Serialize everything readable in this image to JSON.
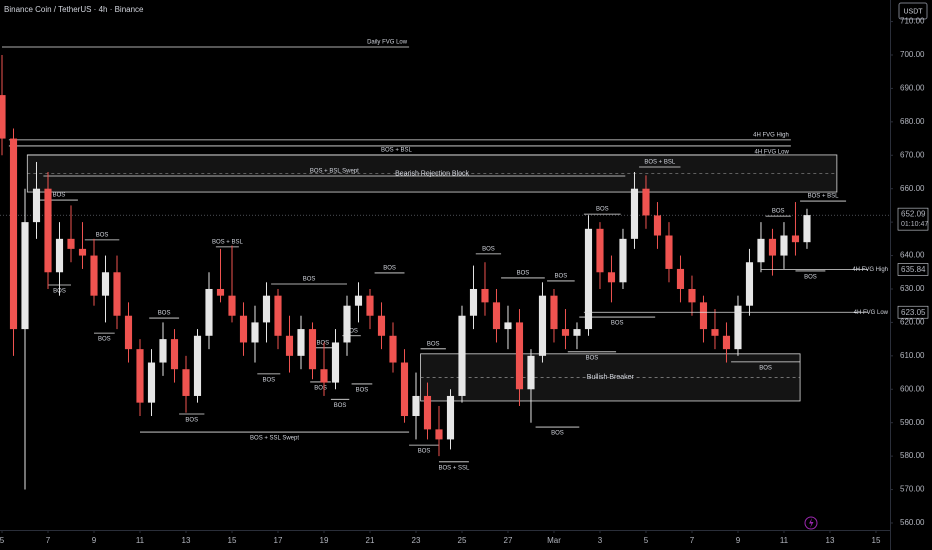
{
  "chart_data": {
    "type": "candlestick",
    "title": "Binance Coin / TetherUS · 4h · Binance",
    "currency": "USDT",
    "up_color": "#e6e6e6",
    "down_color": "#ef5350",
    "xlim": [
      -0.087,
      38.61
    ],
    "ylim": [
      557.9,
      716.45
    ],
    "xticks": [
      {
        "value": 0,
        "label": "5"
      },
      {
        "value": 2,
        "label": "7"
      },
      {
        "value": 4,
        "label": "9"
      },
      {
        "value": 6,
        "label": "11"
      },
      {
        "value": 8,
        "label": "13"
      },
      {
        "value": 10,
        "label": "15"
      },
      {
        "value": 12,
        "label": "17"
      },
      {
        "value": 14,
        "label": "19"
      },
      {
        "value": 16,
        "label": "21"
      },
      {
        "value": 18,
        "label": "23"
      },
      {
        "value": 20,
        "label": "25"
      },
      {
        "value": 22,
        "label": "27"
      },
      {
        "value": 24,
        "label": "Mar"
      },
      {
        "value": 26,
        "label": "3"
      },
      {
        "value": 28,
        "label": "5"
      },
      {
        "value": 30,
        "label": "7"
      },
      {
        "value": 32,
        "label": "9"
      },
      {
        "value": 34,
        "label": "11"
      },
      {
        "value": 36,
        "label": "13"
      },
      {
        "value": 38,
        "label": "15"
      }
    ],
    "yticks": [
      {
        "value": 560,
        "label": "560.00"
      },
      {
        "value": 570,
        "label": "570.00"
      },
      {
        "value": 580,
        "label": "580.00"
      },
      {
        "value": 590,
        "label": "590.00"
      },
      {
        "value": 600,
        "label": "600.00"
      },
      {
        "value": 610,
        "label": "610.00"
      },
      {
        "value": 620,
        "label": "620.00"
      },
      {
        "value": 630,
        "label": "630.00"
      },
      {
        "value": 640,
        "label": "640.00"
      },
      {
        "value": 650,
        "label": "650.00"
      },
      {
        "value": 660,
        "label": "660.00"
      },
      {
        "value": 670,
        "label": "670.00"
      },
      {
        "value": 680,
        "label": "680.00"
      },
      {
        "value": 690,
        "label": "690.00"
      },
      {
        "value": 700,
        "label": "700.00"
      },
      {
        "value": 710,
        "label": "710.00"
      }
    ],
    "x": [
      0,
      0.5,
      1,
      1.5,
      2,
      2.5,
      3,
      3.5,
      4,
      4.5,
      5,
      5.5,
      6,
      6.5,
      7,
      7.5,
      8,
      8.5,
      9,
      9.5,
      10,
      10.5,
      11,
      11.5,
      12,
      12.5,
      13,
      13.5,
      14,
      14.5,
      15,
      15.5,
      16,
      16.5,
      17,
      17.5,
      18,
      18.5,
      19,
      19.5,
      20,
      20.5,
      21,
      21.5,
      22,
      22.5,
      23,
      23.5,
      24,
      24.5,
      25,
      25.5,
      26,
      26.5,
      27,
      27.5,
      28,
      28.5,
      29,
      29.5,
      30,
      30.5,
      31,
      31.5,
      32,
      32.5,
      33,
      33.5,
      34,
      34.5,
      35
    ],
    "open": [
      688,
      675,
      618,
      650,
      660,
      635,
      645,
      642,
      640,
      628,
      635,
      622,
      612,
      596,
      608,
      615,
      606,
      598,
      616,
      630,
      628,
      622,
      614,
      620,
      628,
      616,
      610,
      618,
      606,
      602,
      614,
      625,
      628,
      622,
      616,
      608,
      592,
      598,
      588,
      585,
      598,
      622,
      630,
      626,
      618,
      620,
      600,
      610,
      628,
      618,
      616,
      618,
      648,
      635,
      632,
      645,
      660,
      652,
      646,
      636,
      630,
      626,
      618,
      616,
      612,
      625,
      638,
      645,
      640,
      646,
      644
    ],
    "high": [
      700,
      678,
      660,
      668,
      665,
      650,
      655,
      650,
      645,
      640,
      640,
      626,
      615,
      612,
      620,
      618,
      610,
      618,
      635,
      642,
      643,
      626,
      625,
      632,
      630,
      622,
      622,
      620,
      614,
      618,
      628,
      632,
      630,
      626,
      620,
      612,
      605,
      602,
      595,
      600,
      625,
      637,
      638,
      630,
      625,
      624,
      612,
      632,
      630,
      624,
      620,
      652,
      650,
      640,
      648,
      665,
      664,
      656,
      650,
      640,
      634,
      628,
      624,
      620,
      628,
      642,
      650,
      648,
      650,
      656,
      654
    ],
    "low": [
      670,
      610,
      570,
      645,
      630,
      628,
      638,
      636,
      625,
      620,
      618,
      608,
      592,
      592,
      604,
      602,
      593,
      596,
      612,
      626,
      620,
      610,
      608,
      614,
      612,
      605,
      606,
      603,
      598,
      600,
      610,
      620,
      618,
      612,
      605,
      590,
      585,
      585,
      580,
      582,
      596,
      618,
      622,
      614,
      612,
      595,
      590,
      608,
      614,
      612,
      612,
      616,
      630,
      626,
      630,
      642,
      648,
      642,
      632,
      626,
      622,
      614,
      612,
      608,
      610,
      622,
      635,
      634,
      636,
      640,
      642
    ],
    "close": [
      675,
      618,
      650,
      660,
      635,
      645,
      642,
      640,
      628,
      635,
      622,
      612,
      596,
      608,
      615,
      606,
      598,
      616,
      630,
      628,
      622,
      614,
      620,
      628,
      616,
      610,
      618,
      606,
      602,
      614,
      625,
      628,
      622,
      616,
      608,
      592,
      598,
      588,
      585,
      598,
      622,
      630,
      626,
      618,
      620,
      600,
      610,
      628,
      618,
      616,
      618,
      648,
      635,
      632,
      645,
      660,
      652,
      646,
      636,
      630,
      626,
      618,
      616,
      612,
      625,
      638,
      645,
      640,
      646,
      644,
      652.09
    ],
    "zones": [
      {
        "label": "Bearish Rejection Block",
        "low": 659.0,
        "high": 670.1,
        "from": 1.1,
        "to": 36.3
      },
      {
        "label": "Bullish Breaker",
        "low": 596.5,
        "high": 610.6,
        "from": 18.2,
        "to": 34.7
      }
    ],
    "levels": [
      {
        "label": "Daily FVG Low",
        "price": 702.4,
        "from": 0,
        "to": 17.7,
        "pos": "above",
        "align": "end"
      },
      {
        "label": "4H FVG High",
        "price": 674.6,
        "from": 0.3,
        "to": 34.3,
        "pos": "above",
        "align": "end"
      },
      {
        "label": "4H FVG Low",
        "price": 672.8,
        "from": 0.3,
        "to": 34.3,
        "pos": "below",
        "align": "end"
      },
      {
        "label": "BOS + BSL",
        "price": 670.1,
        "from": 1.1,
        "to": 33.2,
        "pos": "above",
        "align": "middle"
      },
      {
        "label": "BOS + BSL Swept",
        "price": 663.8,
        "from": 1.8,
        "to": 27.1,
        "pos": "above",
        "align": "middle"
      },
      {
        "label": "BOS + SSL Swept",
        "price": 587.2,
        "from": 6.0,
        "to": 17.7,
        "pos": "below",
        "align": "middle"
      },
      {
        "label": "BOS",
        "price": 656.6,
        "from": 1.65,
        "to": 3.3,
        "pos": "above",
        "align": "middle"
      },
      {
        "label": "BOS",
        "price": 631.2,
        "from": 2.0,
        "to": 3.0,
        "pos": "below",
        "align": "middle"
      },
      {
        "label": "BOS",
        "price": 644.7,
        "from": 3.6,
        "to": 5.1,
        "pos": "above",
        "align": "middle"
      },
      {
        "label": "BOS",
        "price": 616.8,
        "from": 4.0,
        "to": 4.9,
        "pos": "below",
        "align": "middle"
      },
      {
        "label": "BOS",
        "price": 621.3,
        "from": 6.4,
        "to": 7.7,
        "pos": "above",
        "align": "middle"
      },
      {
        "label": "BOS",
        "price": 592.6,
        "from": 7.7,
        "to": 8.8,
        "pos": "below",
        "align": "middle"
      },
      {
        "label": "BOS + BSL",
        "price": 642.6,
        "from": 9.3,
        "to": 10.3,
        "pos": "above",
        "align": "middle"
      },
      {
        "label": "BOS",
        "price": 631.5,
        "from": 11.7,
        "to": 15.0,
        "pos": "above",
        "align": "middle"
      },
      {
        "label": "BOS",
        "price": 604.6,
        "from": 11.1,
        "to": 12.1,
        "pos": "below",
        "align": "middle"
      },
      {
        "label": "BOS",
        "price": 634.8,
        "from": 16.2,
        "to": 17.5,
        "pos": "above",
        "align": "middle"
      },
      {
        "label": "BOS",
        "price": 612.4,
        "from": 13.4,
        "to": 14.5,
        "pos": "above",
        "align": "middle"
      },
      {
        "label": "BOS",
        "price": 616.0,
        "from": 14.8,
        "to": 15.6,
        "pos": "above",
        "align": "middle"
      },
      {
        "label": "BOS",
        "price": 602.2,
        "from": 13.4,
        "to": 14.3,
        "pos": "below",
        "align": "middle"
      },
      {
        "label": "BOS",
        "price": 597.0,
        "from": 14.3,
        "to": 15.1,
        "pos": "below",
        "align": "middle"
      },
      {
        "label": "BOS",
        "price": 601.6,
        "from": 15.2,
        "to": 16.1,
        "pos": "below",
        "align": "middle"
      },
      {
        "label": "BOS",
        "price": 612.1,
        "from": 18.2,
        "to": 19.3,
        "pos": "above",
        "align": "middle"
      },
      {
        "label": "BOS",
        "price": 583.3,
        "from": 17.7,
        "to": 19.0,
        "pos": "below",
        "align": "middle"
      },
      {
        "label": "BOS + SSL",
        "price": 578.3,
        "from": 19.0,
        "to": 20.3,
        "pos": "below",
        "align": "middle"
      },
      {
        "label": "BOS",
        "price": 640.5,
        "from": 20.6,
        "to": 21.7,
        "pos": "above",
        "align": "middle"
      },
      {
        "label": "BOS",
        "price": 633.3,
        "from": 21.7,
        "to": 23.6,
        "pos": "above",
        "align": "middle"
      },
      {
        "label": "BOS",
        "price": 632.4,
        "from": 23.7,
        "to": 24.9,
        "pos": "above",
        "align": "middle"
      },
      {
        "label": "BOS",
        "price": 588.7,
        "from": 23.2,
        "to": 25.1,
        "pos": "below",
        "align": "middle"
      },
      {
        "label": "BOS",
        "price": 652.4,
        "from": 25.3,
        "to": 26.9,
        "pos": "above",
        "align": "middle"
      },
      {
        "label": "BOS",
        "price": 621.6,
        "from": 25.1,
        "to": 28.4,
        "pos": "below",
        "align": "middle"
      },
      {
        "label": "BOS + BSL",
        "price": 666.5,
        "from": 27.7,
        "to": 29.5,
        "pos": "above",
        "align": "middle"
      },
      {
        "label": "BOS",
        "price": 611.2,
        "from": 24.6,
        "to": 26.7,
        "pos": "below",
        "align": "middle"
      },
      {
        "label": "BOS",
        "price": 608.2,
        "from": 31.7,
        "to": 34.7,
        "pos": "below",
        "align": "middle"
      },
      {
        "label": "BOS",
        "price": 651.8,
        "from": 33.2,
        "to": 34.3,
        "pos": "above",
        "align": "middle"
      },
      {
        "label": "BOS + BSL",
        "price": 656.3,
        "from": 34.7,
        "to": 36.7,
        "pos": "above",
        "align": "middle"
      },
      {
        "label": "BOS",
        "price": 635.4,
        "from": 34.5,
        "to": 35.8,
        "pos": "below",
        "align": "middle"
      }
    ],
    "last_price": {
      "value": 652.09,
      "countdown": "01:10:47"
    },
    "price_lines": [
      {
        "name": "4H FVG High",
        "value": 635.84,
        "from": 33.0
      },
      {
        "name": "4H FVG Low",
        "value": 623.05,
        "from": 25.3
      }
    ]
  }
}
